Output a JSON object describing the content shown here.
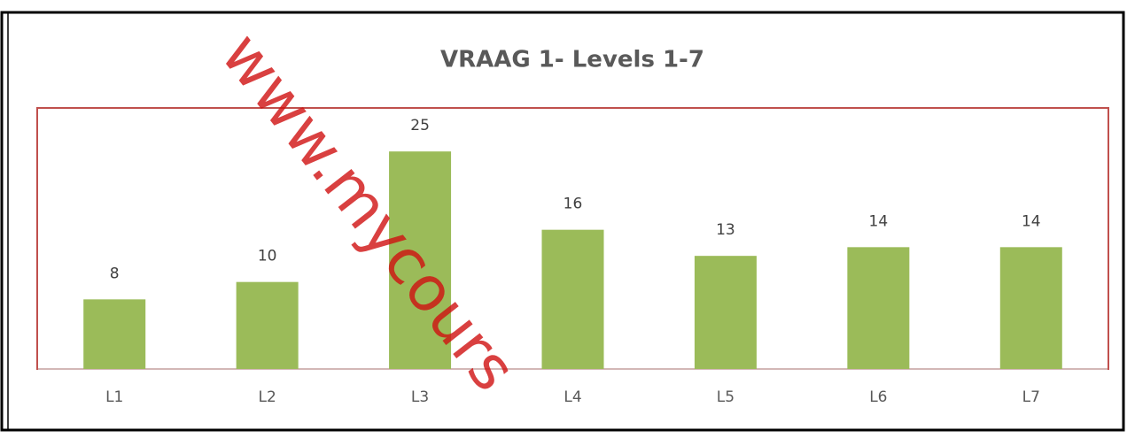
{
  "chart_data": {
    "type": "bar",
    "title": "VRAAG 1- Levels 1-7",
    "categories": [
      "L1",
      "L2",
      "L3",
      "L4",
      "L5",
      "L6",
      "L7"
    ],
    "values": [
      8,
      10,
      25,
      16,
      13,
      14,
      14
    ],
    "color": "#9bbb59",
    "ylim": [
      0,
      30
    ],
    "watermark": "www.mycours"
  }
}
